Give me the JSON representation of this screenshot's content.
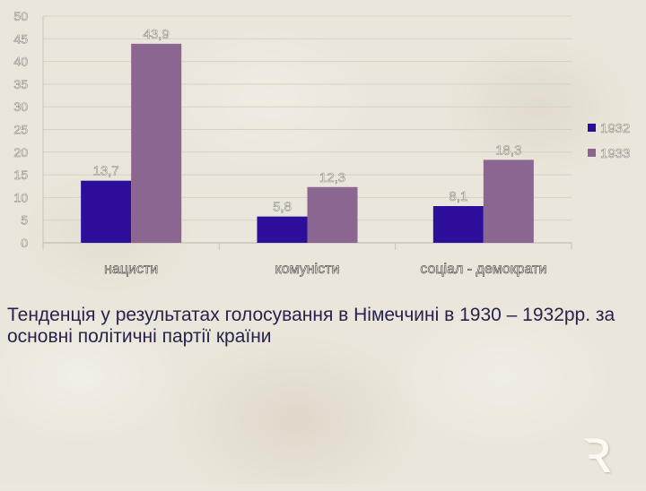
{
  "chart_data": {
    "type": "bar",
    "categories": [
      "нацисти",
      "комуністи",
      "соціал - демократи"
    ],
    "series": [
      {
        "name": "1932",
        "values": [
          13.7,
          5.8,
          8.1
        ],
        "labels": [
          "13,7",
          "5,8",
          "8,1"
        ],
        "color": "#2c0e9a"
      },
      {
        "name": "1933",
        "values": [
          43.9,
          12.3,
          18.3
        ],
        "labels": [
          "43,9",
          "12,3",
          "18,3"
        ],
        "color": "#8a6690"
      }
    ],
    "ylim": [
      0,
      50
    ],
    "yticks": [
      0,
      5,
      10,
      15,
      20,
      25,
      30,
      35,
      40,
      45,
      50
    ],
    "grid": true,
    "legend_position": "right"
  },
  "caption": "Тенденція у результатах голосування в Німеччині в 1930 – 1932рр. за основні політичні партії країни"
}
